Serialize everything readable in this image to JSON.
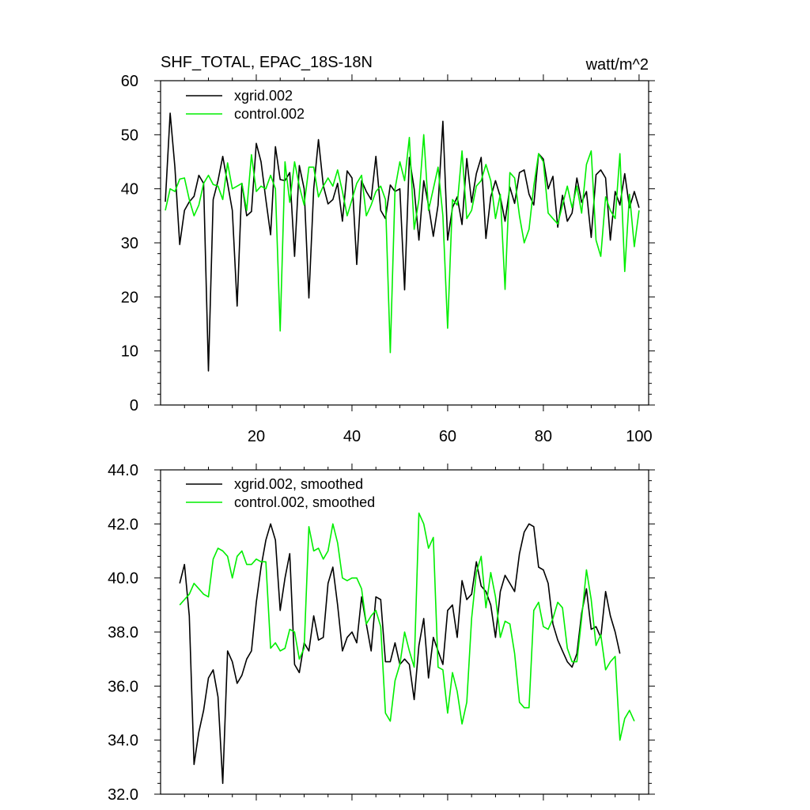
{
  "chart_data": [
    {
      "type": "line",
      "title": "SHF_TOTAL, EPAC_18S-18N",
      "units": "watt/m^2",
      "xlim": [
        0,
        102
      ],
      "ylim": [
        0,
        60
      ],
      "x_ticks": [
        20,
        40,
        60,
        80,
        100
      ],
      "y_ticks": [
        0,
        10,
        20,
        30,
        40,
        50,
        60
      ],
      "y_tick_labels": [
        "0",
        "10",
        "20",
        "30",
        "40",
        "50",
        "60"
      ],
      "show_x_tick_labels": true,
      "legend_position": "top-left",
      "series": [
        {
          "name": "xgrid.002",
          "color": "#000000",
          "x_start": 1,
          "values": [
            37.6,
            54.0,
            44.0,
            29.7,
            36.0,
            37.6,
            38.6,
            42.5,
            41.0,
            6.3,
            38.0,
            41.5,
            46.0,
            41.0,
            36.0,
            18.3,
            41.0,
            35.0,
            35.8,
            48.4,
            45.0,
            38.0,
            31.5,
            47.8,
            41.7,
            41.5,
            43.0,
            27.5,
            44.3,
            40.0,
            19.8,
            40.0,
            49.1,
            40.6,
            37.2,
            38.0,
            41.0,
            34.0,
            43.3,
            42.0,
            26.0,
            41.5,
            39.5,
            38.0,
            46.0,
            36.0,
            34.5,
            40.7,
            39.5,
            40.0,
            21.3,
            45.8,
            40.0,
            30.5,
            41.5,
            37.0,
            31.2,
            37.0,
            52.5,
            30.5,
            36.5,
            38.5,
            33.4,
            45.6,
            37.5,
            42.8,
            45.8,
            30.8,
            38.5,
            41.5,
            38.5,
            34.0,
            40.3,
            37.3,
            43.0,
            43.5,
            39.0,
            37.0,
            46.5,
            45.5,
            40.0,
            42.3,
            32.9,
            38.8,
            34.0,
            35.5,
            42.0,
            37.5,
            39.5,
            31.0,
            42.6,
            43.5,
            42.0,
            30.5,
            39.5,
            37.0,
            42.8,
            36.5,
            39.5,
            36.5
          ]
        },
        {
          "name": "control.002",
          "color": "#00ee00",
          "x_start": 1,
          "values": [
            36.0,
            40.0,
            39.5,
            41.8,
            42.0,
            38.0,
            35.0,
            37.0,
            41.0,
            42.5,
            40.8,
            40.5,
            38.0,
            44.8,
            40.0,
            40.5,
            41.0,
            36.0,
            46.3,
            39.5,
            40.5,
            40.0,
            42.5,
            40.0,
            13.7,
            45.0,
            37.5,
            45.0,
            40.5,
            37.0,
            44.0,
            44.0,
            38.5,
            40.5,
            42.0,
            40.5,
            43.5,
            39.5,
            35.0,
            38.0,
            41.0,
            42.5,
            35.0,
            37.0,
            39.5,
            40.5,
            38.0,
            9.7,
            40.0,
            45.0,
            41.5,
            49.5,
            32.5,
            38.0,
            50.0,
            36.0,
            40.0,
            44.0,
            35.0,
            14.2,
            38.0,
            37.0,
            47.0,
            34.5,
            36.0,
            40.5,
            41.5,
            44.5,
            41.5,
            34.5,
            39.0,
            21.4,
            43.0,
            42.0,
            35.0,
            30.0,
            32.5,
            40.5,
            46.5,
            45.0,
            35.5,
            34.5,
            33.5,
            37.0,
            40.5,
            36.5,
            40.5,
            35.5,
            44.5,
            47.0,
            30.5,
            27.5,
            38.5,
            36.0,
            34.5,
            46.5,
            24.7,
            39.0,
            29.3,
            36.0
          ]
        }
      ]
    },
    {
      "type": "line",
      "title": "",
      "xlim": [
        0,
        102
      ],
      "ylim": [
        32,
        44
      ],
      "x_ticks": [
        20,
        40,
        60,
        80,
        100
      ],
      "y_ticks": [
        32,
        34,
        36,
        38,
        40,
        42,
        44
      ],
      "y_tick_labels": [
        "32.0",
        "34.0",
        "36.0",
        "38.0",
        "40.0",
        "42.0",
        "44.0"
      ],
      "show_x_tick_labels": false,
      "legend_position": "top-left",
      "series": [
        {
          "name": "xgrid.002, smoothed",
          "color": "#000000",
          "x_start": 4,
          "values": [
            39.8,
            40.5,
            38.6,
            33.1,
            34.3,
            35.1,
            36.3,
            36.6,
            35.6,
            32.4,
            37.3,
            36.9,
            36.1,
            36.4,
            37.0,
            37.3,
            39.1,
            40.4,
            41.4,
            42.0,
            41.4,
            38.8,
            40.0,
            40.9,
            36.8,
            36.5,
            37.6,
            37.3,
            38.6,
            37.7,
            37.8,
            39.8,
            40.4,
            39.0,
            37.3,
            37.8,
            38.0,
            37.6,
            39.3,
            38.3,
            37.3,
            39.3,
            39.2,
            36.9,
            36.9,
            37.6,
            36.8,
            37.0,
            36.8,
            35.5,
            37.5,
            38.5,
            36.3,
            37.8,
            37.3,
            36.8,
            38.8,
            39.0,
            37.8,
            39.9,
            39.2,
            39.4,
            40.6,
            39.7,
            39.5,
            39.0,
            37.8,
            39.5,
            40.1,
            39.8,
            39.5,
            40.9,
            41.7,
            42.0,
            41.9,
            40.4,
            40.3,
            39.8,
            38.3,
            37.7,
            37.3,
            36.9,
            36.7,
            37.2,
            38.7,
            39.6,
            38.1,
            38.2,
            37.8,
            39.5,
            38.6,
            38.0,
            37.2
          ]
        },
        {
          "name": "control.002, smoothed",
          "color": "#00ee00",
          "x_start": 4,
          "values": [
            39.0,
            39.2,
            39.4,
            39.8,
            39.6,
            39.4,
            39.3,
            40.7,
            41.1,
            41.0,
            40.8,
            40.0,
            40.8,
            41.0,
            40.5,
            40.5,
            40.7,
            40.6,
            40.6,
            37.4,
            37.6,
            37.3,
            37.4,
            38.1,
            38.0,
            37.0,
            37.4,
            41.9,
            41.0,
            41.1,
            40.7,
            41.0,
            42.0,
            41.3,
            40.0,
            39.9,
            40.0,
            40.0,
            39.6,
            38.3,
            38.6,
            38.8,
            38.2,
            35.0,
            34.7,
            36.2,
            36.8,
            38.0,
            37.3,
            36.7,
            42.4,
            42.0,
            41.1,
            41.5,
            36.7,
            36.6,
            35.0,
            36.5,
            35.8,
            34.6,
            35.4,
            38.5,
            40.2,
            40.8,
            38.9,
            40.2,
            39.3,
            37.8,
            38.4,
            38.3,
            37.2,
            35.4,
            35.2,
            35.2,
            38.8,
            39.1,
            38.2,
            38.1,
            38.5,
            39.1,
            38.9,
            37.4,
            36.9,
            36.9,
            38.5,
            40.3,
            39.2,
            37.5,
            37.9,
            36.6,
            36.9,
            37.1,
            34.0,
            34.8,
            35.1,
            34.7
          ]
        }
      ]
    }
  ]
}
